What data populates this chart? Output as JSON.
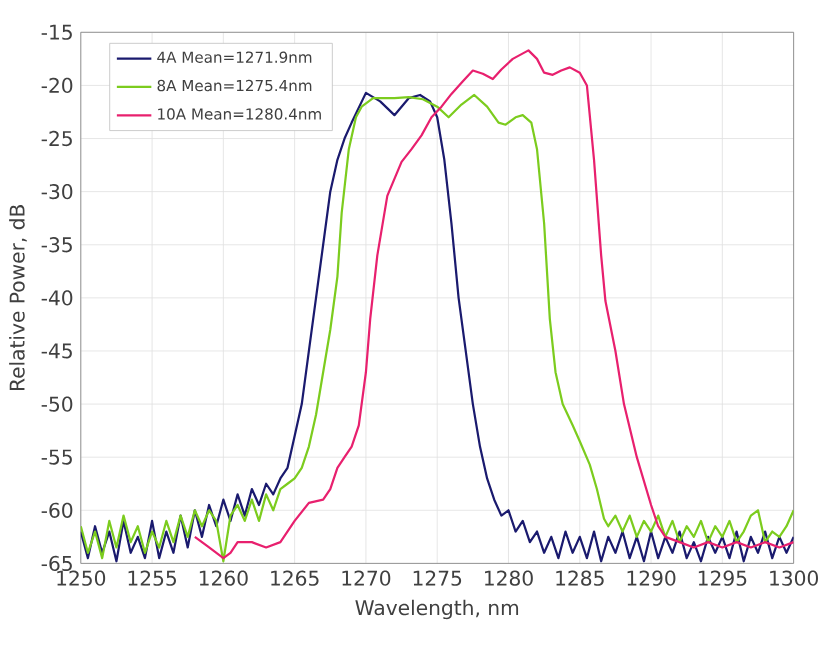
{
  "chart_data": {
    "type": "line",
    "xlabel": "Wavelength, nm",
    "ylabel": "Relative Power, dB",
    "xlim": [
      1250,
      1300
    ],
    "ylim": [
      -65,
      -15
    ],
    "xticks": [
      1250,
      1255,
      1260,
      1265,
      1270,
      1275,
      1280,
      1285,
      1290,
      1295,
      1300
    ],
    "yticks": [
      -65,
      -60,
      -55,
      -50,
      -45,
      -40,
      -35,
      -30,
      -25,
      -20,
      -15
    ],
    "grid": true,
    "legend": "top left",
    "marker": "none",
    "line_style": "solid",
    "series": [
      {
        "name": "4A Mean=1271.9nm",
        "color": "#1a1a6e",
        "x": [
          1250,
          1250.5,
          1251,
          1251.5,
          1252,
          1252.5,
          1253,
          1253.5,
          1254,
          1254.5,
          1255,
          1255.5,
          1256,
          1256.5,
          1257,
          1257.5,
          1258,
          1258.5,
          1259,
          1259.5,
          1260,
          1260.5,
          1261,
          1261.5,
          1262,
          1262.5,
          1263,
          1263.5,
          1264,
          1264.5,
          1265,
          1265.5,
          1266,
          1266.5,
          1267,
          1267.5,
          1268,
          1268.5,
          1269,
          1270,
          1271,
          1272,
          1272.5,
          1273,
          1273.8,
          1274.5,
          1275,
          1275.5,
          1276,
          1276.5,
          1277,
          1277.5,
          1278,
          1278.5,
          1279,
          1279.5,
          1280,
          1280.5,
          1281,
          1281.5,
          1282,
          1282.5,
          1283,
          1283.5,
          1284,
          1284.5,
          1285,
          1285.5,
          1286,
          1286.5,
          1287,
          1287.5,
          1288,
          1288.5,
          1289,
          1289.5,
          1290,
          1290.5,
          1291,
          1291.5,
          1292,
          1292.5,
          1293,
          1293.5,
          1294,
          1294.5,
          1295,
          1295.5,
          1296,
          1296.5,
          1297,
          1297.5,
          1298,
          1298.5,
          1299,
          1299.5,
          1300
        ],
        "values": [
          -62,
          -64.5,
          -61.5,
          -64,
          -62,
          -64.8,
          -61,
          -64,
          -62.5,
          -64.5,
          -61,
          -64.5,
          -62,
          -64,
          -60.5,
          -63.5,
          -60,
          -62.5,
          -59.5,
          -61.5,
          -59,
          -61,
          -58.5,
          -60.5,
          -58,
          -59.5,
          -57.5,
          -58.5,
          -57,
          -56,
          -53,
          -50,
          -45,
          -40,
          -35,
          -30,
          -27,
          -25,
          -23.5,
          -20.7,
          -21.5,
          -22.8,
          -22,
          -21.2,
          -20.9,
          -21.5,
          -23,
          -27,
          -33,
          -40,
          -45,
          -50,
          -54,
          -57,
          -59,
          -60.5,
          -60,
          -62,
          -61,
          -63,
          -62,
          -64,
          -62.5,
          -64.5,
          -62,
          -64,
          -62.5,
          -64.5,
          -62,
          -64.8,
          -62.5,
          -64,
          -62,
          -64.5,
          -62.5,
          -64.8,
          -62,
          -64.5,
          -62.5,
          -64,
          -62,
          -64.5,
          -63,
          -64.8,
          -62.5,
          -64,
          -62.5,
          -64.5,
          -62,
          -64.8,
          -62.5,
          -64,
          -62,
          -64.5,
          -62.5,
          -64,
          -62.5
        ]
      },
      {
        "name": "8A Mean=1275.4nm",
        "color": "#7ccc1e",
        "x": [
          1250,
          1250.5,
          1251,
          1251.5,
          1252,
          1252.5,
          1253,
          1253.5,
          1254,
          1254.5,
          1255,
          1255.5,
          1256,
          1256.5,
          1257,
          1257.5,
          1258,
          1258.5,
          1259,
          1259.5,
          1260,
          1260.5,
          1261,
          1261.5,
          1262,
          1262.5,
          1263,
          1263.5,
          1264,
          1264.5,
          1265,
          1265.5,
          1266,
          1266.5,
          1267,
          1267.5,
          1268,
          1268.3,
          1268.8,
          1269.3,
          1269.7,
          1270.5,
          1272,
          1273,
          1274,
          1275,
          1275.8,
          1276.7,
          1277.6,
          1278.5,
          1279.3,
          1279.8,
          1280.5,
          1281,
          1281.6,
          1282,
          1282.5,
          1282.9,
          1283.3,
          1283.8,
          1284.5,
          1285,
          1285.7,
          1286.2,
          1286.7,
          1287,
          1287.5,
          1288,
          1288.5,
          1289,
          1289.5,
          1290,
          1290.5,
          1291,
          1291.5,
          1292,
          1292.5,
          1293,
          1293.5,
          1294,
          1294.5,
          1295,
          1295.5,
          1296,
          1296.5,
          1297,
          1297.5,
          1298,
          1298.5,
          1299,
          1299.5,
          1300
        ],
        "values": [
          -61.5,
          -64,
          -62,
          -64.5,
          -61,
          -63.5,
          -60.5,
          -63,
          -61.5,
          -64,
          -62,
          -63.5,
          -61,
          -63,
          -60.5,
          -62.5,
          -60,
          -61.5,
          -60,
          -61,
          -64.8,
          -60.5,
          -59.5,
          -61,
          -59,
          -61,
          -58.5,
          -60,
          -58,
          -57.5,
          -57,
          -56,
          -54,
          -51,
          -47,
          -43,
          -38,
          -32,
          -26,
          -23,
          -22,
          -21.2,
          -21.2,
          -21.1,
          -21.3,
          -22,
          -23,
          -21.8,
          -20.9,
          -22,
          -23.5,
          -23.7,
          -23,
          -22.8,
          -23.5,
          -26,
          -33,
          -42,
          -47,
          -50,
          -52,
          -53.5,
          -55.7,
          -58,
          -60.8,
          -61.5,
          -60.5,
          -62,
          -60.5,
          -62.5,
          -61,
          -62,
          -60.5,
          -62.5,
          -61,
          -63,
          -61.5,
          -62.5,
          -61,
          -63,
          -61.5,
          -62.5,
          -61,
          -63,
          -62,
          -60.5,
          -60,
          -63,
          -62,
          -62.5,
          -61.5,
          -60
        ]
      },
      {
        "name": "10A Mean=1280.4nm",
        "color": "#e8206e",
        "x": [
          1258,
          1259,
          1260,
          1260.5,
          1261,
          1262,
          1263,
          1264,
          1265,
          1266,
          1267,
          1267.5,
          1268,
          1268.5,
          1269,
          1269.5,
          1270,
          1270.3,
          1270.8,
          1271.5,
          1272.5,
          1273.2,
          1273.9,
          1274.6,
          1275.3,
          1276,
          1276.8,
          1277.5,
          1278.2,
          1278.9,
          1279.5,
          1280.3,
          1281.4,
          1282,
          1282.5,
          1283.1,
          1283.7,
          1284.3,
          1285,
          1285.5,
          1286,
          1286.5,
          1286.8,
          1287.5,
          1288.1,
          1289,
          1290,
          1290.5,
          1291,
          1292,
          1293,
          1294,
          1295,
          1296,
          1297,
          1298,
          1299,
          1300
        ],
        "values": [
          -62.5,
          -63.5,
          -64.5,
          -64,
          -63,
          -63,
          -63.5,
          -63,
          -61,
          -59.3,
          -59,
          -58,
          -56,
          -55,
          -54,
          -52,
          -47,
          -42,
          -36,
          -30.4,
          -27.2,
          -26,
          -24.7,
          -23,
          -22,
          -20.8,
          -19.6,
          -18.6,
          -18.9,
          -19.4,
          -18.5,
          -17.5,
          -16.7,
          -17.5,
          -18.8,
          -19,
          -18.6,
          -18.3,
          -18.8,
          -20,
          -27,
          -36,
          -40.3,
          -45,
          -50,
          -55,
          -59.5,
          -61.5,
          -62.5,
          -63,
          -63.5,
          -63,
          -63.5,
          -63,
          -63.5,
          -63,
          -63.5,
          -63
        ]
      }
    ]
  }
}
